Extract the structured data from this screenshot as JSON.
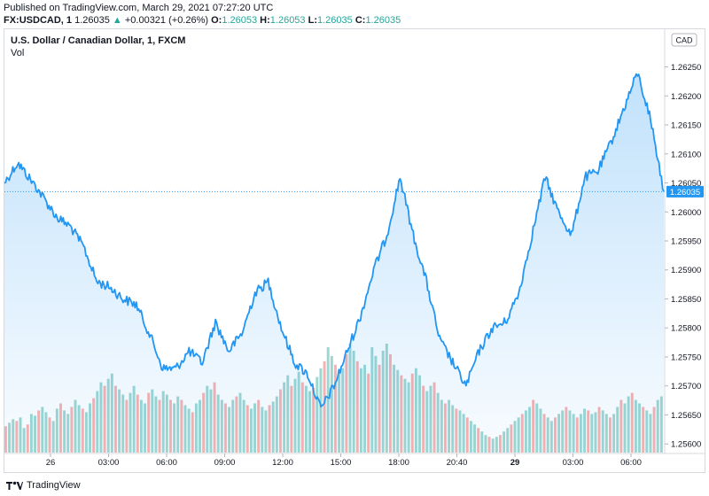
{
  "header": {
    "published": "Published on TradingView.com, March 29, 2021 07:27:20 UTC",
    "symbol": "FX:USDCAD, 1",
    "last": "1.26035",
    "change": "+0.00321 (+0.26%)",
    "o_label": "O:",
    "o_val": "1.26053",
    "h_label": "H:",
    "h_val": "1.26053",
    "l_label": "L:",
    "l_val": "1.26035",
    "c_label": "C:",
    "c_val": "1.26035"
  },
  "legend": {
    "title": "U.S. Dollar / Canadian Dollar, 1, FXCM",
    "vol": "Vol"
  },
  "currency_badge": "CAD",
  "last_price_label": "1.26035",
  "footer": {
    "brand": "TradingView"
  },
  "colors": {
    "line": "#2196f3",
    "fill": "#2196f3",
    "vol_up": "#26a69a",
    "vol_down": "#ef5350",
    "up_text": "#26a69a"
  },
  "chart_data": {
    "type": "area",
    "x_ticks": [
      "26",
      "03:00",
      "06:00",
      "09:00",
      "12:00",
      "15:00",
      "18:00",
      "20:40",
      "29",
      "03:00",
      "06:00"
    ],
    "x_ticks_bold": [
      false,
      false,
      false,
      false,
      false,
      false,
      false,
      false,
      true,
      false,
      false
    ],
    "y_ticks": [
      "1.25600",
      "1.25650",
      "1.25700",
      "1.25750",
      "1.25800",
      "1.25850",
      "1.25900",
      "1.25950",
      "1.26000",
      "1.26050",
      "1.26100",
      "1.26150",
      "1.26200",
      "1.26250"
    ],
    "ylim": [
      1.25585,
      1.26315
    ],
    "last_value": 1.26035,
    "series": [
      {
        "x": [
          0,
          2,
          5,
          8,
          10,
          12,
          14,
          16,
          18,
          20,
          22,
          24,
          26,
          28,
          30,
          32,
          34,
          36,
          38,
          40,
          42,
          44,
          46,
          48,
          50,
          52,
          54,
          56,
          58,
          60,
          62,
          64,
          66,
          68,
          70,
          72,
          74,
          76,
          78,
          80,
          82,
          84,
          86,
          88,
          90,
          92,
          94,
          96,
          98,
          100
        ],
        "values": [
          1.2605,
          1.26085,
          1.2604,
          1.2599,
          1.25975,
          1.2594,
          1.2588,
          1.2587,
          1.2585,
          1.2584,
          1.2579,
          1.2573,
          1.2573,
          1.2576,
          1.2574,
          1.2581,
          1.2576,
          1.2579,
          1.2586,
          1.2588,
          1.258,
          1.2574,
          1.2572,
          1.2566,
          1.257,
          1.2576,
          1.2582,
          1.259,
          1.2596,
          1.2606,
          1.2596,
          1.2588,
          1.2578,
          1.2574,
          1.257,
          1.2576,
          1.258,
          1.2581,
          1.2586,
          1.2596,
          1.2606,
          1.26,
          1.2596,
          1.2606,
          1.2607,
          1.2612,
          1.2618,
          1.2624,
          1.2616,
          1.26035
        ]
      }
    ],
    "volume": [
      15,
      17,
      19,
      18,
      20,
      14,
      16,
      22,
      21,
      24,
      26,
      23,
      20,
      18,
      25,
      28,
      24,
      22,
      26,
      30,
      27,
      25,
      23,
      28,
      31,
      35,
      40,
      38,
      42,
      45,
      38,
      36,
      33,
      30,
      34,
      38,
      33,
      30,
      28,
      34,
      36,
      32,
      30,
      35,
      33,
      30,
      28,
      32,
      30,
      27,
      25,
      23,
      28,
      30,
      34,
      38,
      36,
      40,
      33,
      30,
      28,
      26,
      30,
      32,
      34,
      30,
      27,
      25,
      28,
      30,
      26,
      24,
      27,
      29,
      32,
      36,
      40,
      44,
      38,
      42,
      46,
      40,
      38,
      35,
      37,
      43,
      48,
      52,
      60,
      55,
      50,
      45,
      48,
      56,
      62,
      58,
      52,
      48,
      50,
      45,
      60,
      55,
      50,
      58,
      62,
      56,
      50,
      47,
      44,
      42,
      40,
      45,
      48,
      44,
      38,
      35,
      38,
      40,
      34,
      30,
      28,
      30,
      27,
      25,
      24,
      22,
      20,
      18,
      16,
      14,
      12,
      10,
      9,
      8,
      9,
      10,
      12,
      14,
      16,
      18,
      20,
      22,
      24,
      26,
      30,
      28,
      25,
      22,
      20,
      18,
      20,
      22,
      24,
      26,
      24,
      22,
      20,
      22,
      25,
      24,
      22,
      23,
      26,
      24,
      22,
      20,
      22,
      26,
      30,
      28,
      32,
      34,
      30,
      28,
      26,
      24,
      22,
      26,
      30,
      32
    ]
  }
}
